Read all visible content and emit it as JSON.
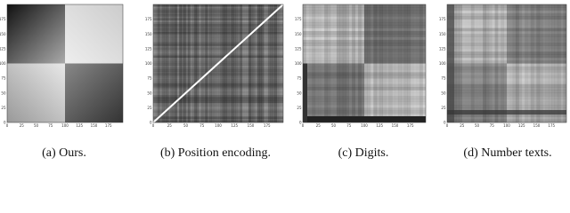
{
  "panels": [
    {
      "caption": "(a) Ours.",
      "ticks": [
        0,
        25,
        50,
        75,
        100,
        125,
        150,
        175
      ]
    },
    {
      "caption": "(b) Position encoding.",
      "ticks": [
        0,
        25,
        50,
        75,
        100,
        125,
        150,
        175
      ]
    },
    {
      "caption": "(c) Digits.",
      "ticks": [
        0,
        25,
        50,
        75,
        100,
        125,
        150,
        175
      ]
    },
    {
      "caption": "(d) Number texts.",
      "ticks": [
        0,
        25,
        50,
        75,
        100,
        125,
        150,
        175
      ]
    }
  ]
}
